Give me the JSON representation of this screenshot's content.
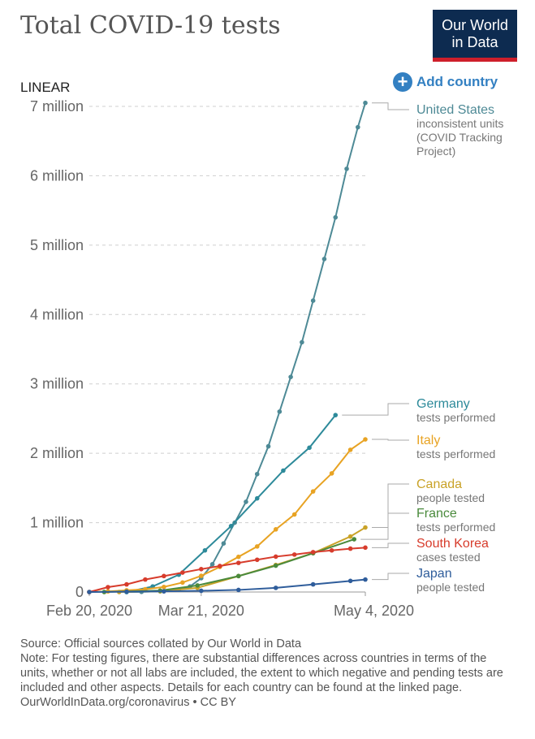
{
  "header": {
    "title": "Total COVID-19 tests",
    "logo_line1": "Our World",
    "logo_line2": "in Data",
    "scale_label": "LINEAR",
    "add_country_label": "Add country"
  },
  "footer": {
    "source": "Source: Official sources collated by Our World in Data",
    "note": "Note: For testing figures, there are substantial differences across countries in terms of the units, whether or not all labs are included, the extent to which negative and pending tests are included and other aspects. Details for each country can be found at the linked page.",
    "link": "OurWorldInData.org/coronavirus • CC BY"
  },
  "chart_data": {
    "type": "line",
    "x_axis": {
      "type": "date",
      "range": [
        "2020-02-20",
        "2020-05-04"
      ],
      "ticks": [
        {
          "date": "2020-02-20",
          "label": "Feb 20, 2020"
        },
        {
          "date": "2020-03-21",
          "label": "Mar 21, 2020"
        },
        {
          "date": "2020-05-04",
          "label": "May 4, 2020"
        }
      ]
    },
    "y_axis": {
      "scale": "linear",
      "range": [
        0,
        7000000
      ],
      "ticks": [
        {
          "value": 0,
          "label": "0"
        },
        {
          "value": 1000000,
          "label": "1 million"
        },
        {
          "value": 2000000,
          "label": "2 million"
        },
        {
          "value": 3000000,
          "label": "3 million"
        },
        {
          "value": 4000000,
          "label": "4 million"
        },
        {
          "value": 5000000,
          "label": "5 million"
        },
        {
          "value": 6000000,
          "label": "6 million"
        },
        {
          "value": 7000000,
          "label": "7 million"
        }
      ],
      "grid": true
    },
    "series": [
      {
        "name": "United States",
        "units": [
          "inconsistent units",
          "(COVID Tracking",
          "Project)"
        ],
        "color": "#4e8a96",
        "points": [
          [
            "2020-03-01",
            0
          ],
          [
            "2020-03-05",
            2000
          ],
          [
            "2020-03-10",
            10000
          ],
          [
            "2020-03-15",
            35000
          ],
          [
            "2020-03-18",
            80000
          ],
          [
            "2020-03-21",
            200000
          ],
          [
            "2020-03-24",
            400000
          ],
          [
            "2020-03-27",
            700000
          ],
          [
            "2020-03-30",
            1000000
          ],
          [
            "2020-04-02",
            1300000
          ],
          [
            "2020-04-05",
            1700000
          ],
          [
            "2020-04-08",
            2100000
          ],
          [
            "2020-04-11",
            2600000
          ],
          [
            "2020-04-14",
            3100000
          ],
          [
            "2020-04-17",
            3600000
          ],
          [
            "2020-04-20",
            4200000
          ],
          [
            "2020-04-23",
            4800000
          ],
          [
            "2020-04-26",
            5400000
          ],
          [
            "2020-04-29",
            6100000
          ],
          [
            "2020-05-02",
            6700000
          ],
          [
            "2020-05-04",
            7050000
          ]
        ]
      },
      {
        "name": "Germany",
        "units": [
          "tests performed"
        ],
        "color": "#2d8a9a",
        "points": [
          [
            "2020-03-01",
            0
          ],
          [
            "2020-03-08",
            80000
          ],
          [
            "2020-03-15",
            250000
          ],
          [
            "2020-03-22",
            600000
          ],
          [
            "2020-03-29",
            950000
          ],
          [
            "2020-04-05",
            1350000
          ],
          [
            "2020-04-12",
            1750000
          ],
          [
            "2020-04-19",
            2080000
          ],
          [
            "2020-04-26",
            2550000
          ]
        ]
      },
      {
        "name": "Italy",
        "units": [
          "tests performed"
        ],
        "color": "#e8a323",
        "points": [
          [
            "2020-02-20",
            0
          ],
          [
            "2020-02-25",
            9000
          ],
          [
            "2020-03-01",
            25000
          ],
          [
            "2020-03-06",
            40000
          ],
          [
            "2020-03-11",
            73000
          ],
          [
            "2020-03-16",
            137000
          ],
          [
            "2020-03-21",
            233000
          ],
          [
            "2020-03-26",
            362000
          ],
          [
            "2020-03-31",
            507000
          ],
          [
            "2020-04-05",
            657000
          ],
          [
            "2020-04-10",
            903000
          ],
          [
            "2020-04-15",
            1118000
          ],
          [
            "2020-04-20",
            1450000
          ],
          [
            "2020-04-25",
            1710000
          ],
          [
            "2020-04-30",
            2050000
          ],
          [
            "2020-05-04",
            2200000
          ]
        ]
      },
      {
        "name": "Canada",
        "units": [
          "people tested"
        ],
        "color": "#c9a227",
        "points": [
          [
            "2020-02-28",
            0
          ],
          [
            "2020-03-10",
            12000
          ],
          [
            "2020-03-20",
            60000
          ],
          [
            "2020-03-31",
            230000
          ],
          [
            "2020-04-10",
            390000
          ],
          [
            "2020-04-20",
            560000
          ],
          [
            "2020-04-30",
            800000
          ],
          [
            "2020-05-04",
            930000
          ]
        ]
      },
      {
        "name": "France",
        "units": [
          "tests performed"
        ],
        "color": "#4a8a3c",
        "points": [
          [
            "2020-02-24",
            0
          ],
          [
            "2020-03-10",
            20000
          ],
          [
            "2020-03-20",
            95000
          ],
          [
            "2020-03-31",
            230000
          ],
          [
            "2020-04-10",
            380000
          ],
          [
            "2020-04-20",
            560000
          ],
          [
            "2020-05-01",
            760000
          ]
        ]
      },
      {
        "name": "South Korea",
        "units": [
          "cases tested"
        ],
        "color": "#d73c2c",
        "points": [
          [
            "2020-02-20",
            0
          ],
          [
            "2020-02-25",
            70000
          ],
          [
            "2020-03-01",
            110000
          ],
          [
            "2020-03-06",
            180000
          ],
          [
            "2020-03-11",
            230000
          ],
          [
            "2020-03-16",
            280000
          ],
          [
            "2020-03-21",
            330000
          ],
          [
            "2020-03-26",
            375000
          ],
          [
            "2020-03-31",
            420000
          ],
          [
            "2020-04-05",
            465000
          ],
          [
            "2020-04-10",
            510000
          ],
          [
            "2020-04-15",
            540000
          ],
          [
            "2020-04-20",
            575000
          ],
          [
            "2020-04-25",
            600000
          ],
          [
            "2020-04-30",
            625000
          ],
          [
            "2020-05-04",
            640000
          ]
        ]
      },
      {
        "name": "Japan",
        "units": [
          "people tested"
        ],
        "color": "#2f5d9b",
        "points": [
          [
            "2020-02-20",
            0
          ],
          [
            "2020-03-01",
            5000
          ],
          [
            "2020-03-11",
            10000
          ],
          [
            "2020-03-21",
            18000
          ],
          [
            "2020-03-31",
            30000
          ],
          [
            "2020-04-10",
            60000
          ],
          [
            "2020-04-20",
            110000
          ],
          [
            "2020-04-30",
            160000
          ],
          [
            "2020-05-04",
            180000
          ]
        ]
      }
    ]
  }
}
